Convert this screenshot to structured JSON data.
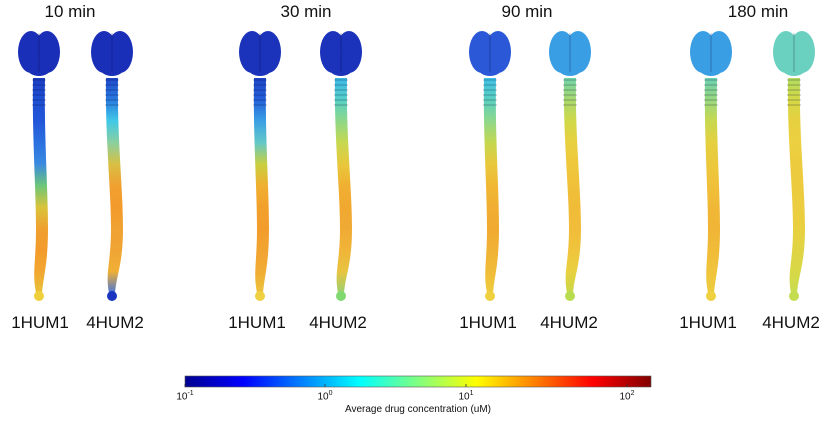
{
  "timepoints": [
    {
      "title": "10 min",
      "left_label": "1HUM1",
      "right_label": "4HUM2",
      "left": {
        "brain": "#1a2fb8",
        "segments": [
          "#1d3ec4",
          "#1e4fd2",
          "#2256d8",
          "#2a70e0",
          "#3a8ae0",
          "#6cc67a",
          "#d8c43a",
          "#f0a030",
          "#f29b2c",
          "#f2a630",
          "#e8c238"
        ],
        "tip": "#f0d03a"
      },
      "right": {
        "brain": "#1a2fb8",
        "segments": [
          "#1f48cc",
          "#2a7ae0",
          "#40c8e6",
          "#8ad0a0",
          "#d8c044",
          "#f0a030",
          "#f29b2c",
          "#f0a232",
          "#f0a434",
          "#f0b034",
          "#4a78d8"
        ],
        "tip": "#1b35c0"
      }
    },
    {
      "title": "30 min",
      "left_label": "1HUM1",
      "right_label": "4HUM2",
      "left": {
        "brain": "#1b32ba",
        "segments": [
          "#1f44c8",
          "#2460da",
          "#3aa0e4",
          "#62c8c8",
          "#c8d040",
          "#f0b030",
          "#f2a02c",
          "#f29c2c",
          "#f2a430",
          "#f0ac34",
          "#ecc43a"
        ],
        "tip": "#eed040"
      },
      "right": {
        "brain": "#1b32ba",
        "segments": [
          "#3ab8e6",
          "#56d0c8",
          "#8ed888",
          "#c6d850",
          "#e8c83c",
          "#f0b032",
          "#f0a830",
          "#f0aa34",
          "#f0b438",
          "#e8c440",
          "#9ad070"
        ],
        "tip": "#80d870"
      }
    },
    {
      "title": "90 min",
      "left_label": "1HUM1",
      "right_label": "4HUM2",
      "left": {
        "brain": "#2a58d6",
        "segments": [
          "#40c0e6",
          "#5ad0c0",
          "#8ed88a",
          "#c4d850",
          "#e8c83c",
          "#f0b834",
          "#f0ae32",
          "#f0aa32",
          "#f0b234",
          "#f0bc38",
          "#eecc3c"
        ],
        "tip": "#eed040"
      },
      "right": {
        "brain": "#3a9ee4",
        "segments": [
          "#70d4a8",
          "#a8d870",
          "#d0d848",
          "#e8d040",
          "#eec83a",
          "#f0c03a",
          "#f0bc38",
          "#f0bc3a",
          "#f0c43c",
          "#e8d040",
          "#c8d848"
        ],
        "tip": "#b8dc50"
      }
    },
    {
      "title": "180 min",
      "left_label": "1HUM1",
      "right_label": "4HUM2",
      "left": {
        "brain": "#3a9ee4",
        "segments": [
          "#6ad0b0",
          "#98d880",
          "#c8d850",
          "#e4d040",
          "#ecc83c",
          "#f0c03a",
          "#f0b836",
          "#f0b436",
          "#f0bc38",
          "#f0c43c",
          "#eccc3e"
        ],
        "tip": "#eed040"
      },
      "right": {
        "brain": "#6ad0c0",
        "segments": [
          "#b0dc60",
          "#d4d846",
          "#e6d040",
          "#ecd040",
          "#eccc3e",
          "#eccc3e",
          "#eccc40",
          "#e8d040",
          "#e0d444",
          "#d8d846",
          "#c8dc50"
        ],
        "tip": "#c4dc50"
      }
    }
  ],
  "colorbar": {
    "title": "Average drug concentration (uM)",
    "ticks": [
      {
        "base": "10",
        "exp": "-1"
      },
      {
        "base": "10",
        "exp": "0"
      },
      {
        "base": "10",
        "exp": "1"
      },
      {
        "base": "10",
        "exp": "2"
      }
    ],
    "colors": [
      "#00008f",
      "#0000ff",
      "#0080ff",
      "#00ffff",
      "#80ff80",
      "#ffff00",
      "#ff8000",
      "#ff0000",
      "#800000"
    ]
  }
}
